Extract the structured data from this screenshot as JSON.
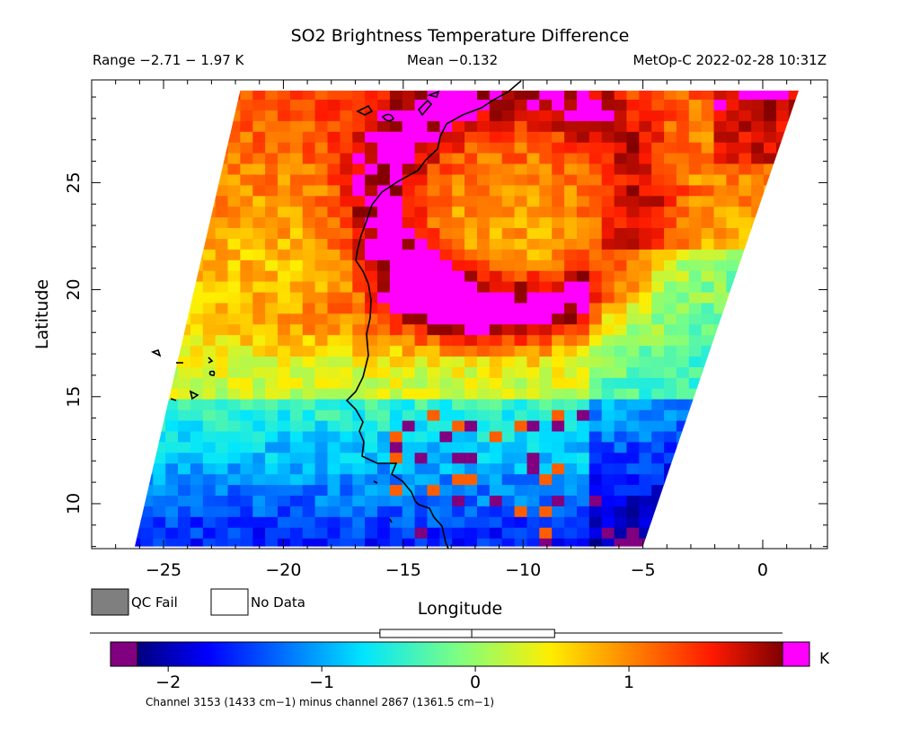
{
  "chart_data": {
    "type": "heatmap",
    "title": "SO2 Brightness Temperature Difference",
    "range_text": "Range −2.71 − 1.97 K",
    "mean_text": "Mean −0.132",
    "satellite_text": "MetOp-C 2022-02-28 10:31Z",
    "xlabel": "Longitude",
    "ylabel": "Latitude",
    "xlim": [
      -28,
      2.7
    ],
    "ylim": [
      7.9,
      29.8
    ],
    "x_ticks": [
      {
        "value": -25,
        "label": "−25"
      },
      {
        "value": -20,
        "label": "−20"
      },
      {
        "value": -15,
        "label": "−15"
      },
      {
        "value": -10,
        "label": "−10"
      },
      {
        "value": -5,
        "label": "−5"
      },
      {
        "value": 0,
        "label": "0"
      }
    ],
    "y_ticks": [
      {
        "value": 10,
        "label": "10"
      },
      {
        "value": 15,
        "label": "15"
      },
      {
        "value": 20,
        "label": "20"
      },
      {
        "value": 25,
        "label": "25"
      }
    ],
    "swath_corners": [
      [
        -26.2,
        8.0
      ],
      [
        -5.0,
        8.0
      ],
      [
        1.5,
        29.3
      ],
      [
        -21.8,
        29.3
      ]
    ],
    "legend": {
      "qc_fail": {
        "label": "QC Fail",
        "color": "#7f7f7f"
      },
      "no_data": {
        "label": "No Data",
        "color": "#ffffff"
      }
    },
    "colorbar": {
      "min": -2.2,
      "max": 2.0,
      "unit": "K",
      "ticks": [
        {
          "value": -2,
          "label": "−2"
        },
        {
          "value": -1,
          "label": "−1"
        },
        {
          "value": 0,
          "label": "0"
        },
        {
          "value": 1,
          "label": "1"
        }
      ],
      "under_color": "#800080",
      "over_color": "#ff00ff",
      "box_stats": {
        "min": -2.71,
        "q1": -0.75,
        "median": -0.13,
        "q3": 0.43,
        "max": 1.97
      },
      "whisker_range": [
        -2.71,
        1.97
      ]
    },
    "footnote": "Channel 3153 (1433 cm−1) minus channel 2867 (1361.5 cm−1)",
    "plume": {
      "description_features": [
        "arc-shaped plume over West Africa coast",
        "peak near 20N 14W"
      ],
      "peak_value": 1.6
    }
  }
}
